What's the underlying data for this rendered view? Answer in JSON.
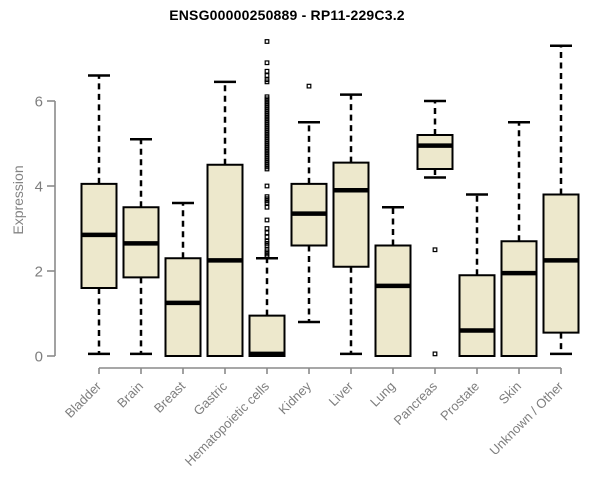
{
  "title": "ENSG00000250889 - RP11-229C3.2",
  "chart_data": {
    "type": "boxplot",
    "title": "ENSG00000250889 - RP11-229C3.2",
    "xlabel": "",
    "ylabel": "Expression",
    "ylim": [
      0,
      7.5
    ],
    "yticks": [
      0,
      2,
      4,
      6
    ],
    "grid": false,
    "legend": "none",
    "colors": {
      "box_fill": "#EDE8CC",
      "box_border": "#000000",
      "median": "#000000",
      "whisker": "#000000",
      "axis_line": "#8A8A8A",
      "tick_label": "#7E7E7E",
      "background": "#FFFFFF"
    },
    "categories": [
      "Bladder",
      "Brain",
      "Breast",
      "Gastric",
      "Hematopoietic cells",
      "Kidney",
      "Liver",
      "Lung",
      "Pancreas",
      "Prostate",
      "Skin",
      "Unknown / Other"
    ],
    "series": [
      {
        "name": "Bladder",
        "whisker_low": 0.05,
        "q1": 1.6,
        "median": 2.85,
        "q3": 4.05,
        "whisker_high": 6.6,
        "outliers": []
      },
      {
        "name": "Brain",
        "whisker_low": 0.05,
        "q1": 1.85,
        "median": 2.65,
        "q3": 3.5,
        "whisker_high": 5.1,
        "outliers": []
      },
      {
        "name": "Breast",
        "whisker_low": 0,
        "q1": 0,
        "median": 1.25,
        "q3": 2.3,
        "whisker_high": 3.6,
        "outliers": []
      },
      {
        "name": "Gastric",
        "whisker_low": 0,
        "q1": 0,
        "median": 2.25,
        "q3": 4.5,
        "whisker_high": 6.45,
        "outliers": []
      },
      {
        "name": "Hematopoietic cells",
        "whisker_low": 0,
        "q1": 0,
        "median": 0.05,
        "q3": 0.95,
        "whisker_high": 2.3,
        "outliers": [
          7.4,
          6.9,
          6.7,
          6.6,
          6.5,
          6.45,
          6.1,
          6.05,
          6.0,
          5.95,
          5.9,
          5.85,
          5.8,
          5.75,
          5.7,
          5.65,
          5.6,
          5.55,
          5.5,
          5.45,
          5.4,
          5.35,
          5.3,
          5.25,
          5.2,
          5.15,
          5.1,
          5.05,
          5.0,
          4.95,
          4.9,
          4.85,
          4.8,
          4.75,
          4.7,
          4.65,
          4.6,
          4.55,
          4.5,
          4.45,
          4.4,
          4.0,
          3.75,
          3.7,
          3.65,
          3.6,
          3.5,
          3.2,
          3.0,
          2.9,
          2.8,
          2.7,
          2.65,
          2.6,
          2.5,
          2.45,
          2.4,
          2.35
        ]
      },
      {
        "name": "Kidney",
        "whisker_low": 0.8,
        "q1": 2.6,
        "median": 3.35,
        "q3": 4.05,
        "whisker_high": 5.5,
        "outliers": [
          6.35
        ]
      },
      {
        "name": "Liver",
        "whisker_low": 0.05,
        "q1": 2.1,
        "median": 3.9,
        "q3": 4.55,
        "whisker_high": 6.15,
        "outliers": []
      },
      {
        "name": "Lung",
        "whisker_low": 0,
        "q1": 0,
        "median": 1.65,
        "q3": 2.6,
        "whisker_high": 3.5,
        "outliers": []
      },
      {
        "name": "Pancreas",
        "whisker_low": 4.2,
        "q1": 4.4,
        "median": 4.95,
        "q3": 5.2,
        "whisker_high": 6.0,
        "outliers": [
          2.5,
          0.05
        ]
      },
      {
        "name": "Prostate",
        "whisker_low": 0,
        "q1": 0,
        "median": 0.6,
        "q3": 1.9,
        "whisker_high": 3.8,
        "outliers": []
      },
      {
        "name": "Skin",
        "whisker_low": 0,
        "q1": 0,
        "median": 1.95,
        "q3": 2.7,
        "whisker_high": 5.5,
        "outliers": []
      },
      {
        "name": "Unknown / Other",
        "whisker_low": 0.05,
        "q1": 0.55,
        "median": 2.25,
        "q3": 3.8,
        "whisker_high": 7.3,
        "outliers": []
      }
    ]
  }
}
